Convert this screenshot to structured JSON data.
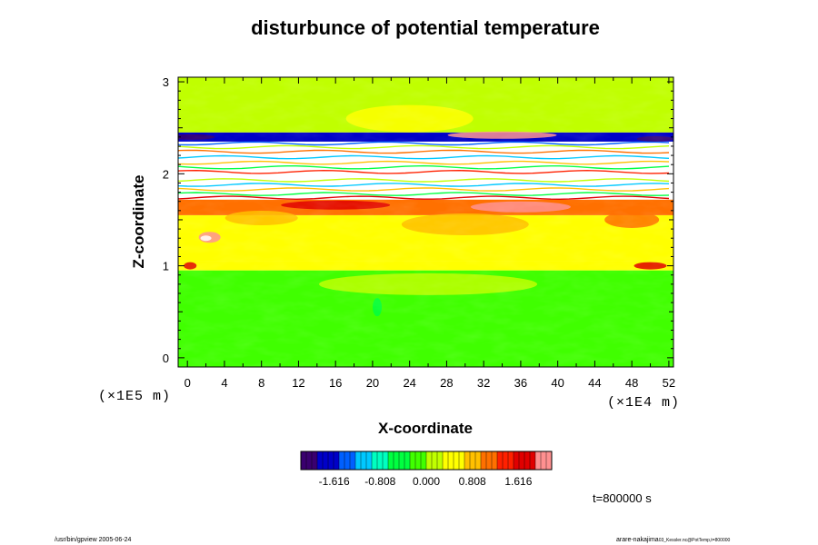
{
  "chart_data": {
    "type": "heatmap",
    "title": "disturbunce of potential temperature",
    "xlabel": "X-coordinate",
    "ylabel": "Z-coordinate",
    "x_unit": "(×1E4 m)",
    "y_unit": "(×1E5 m)",
    "xlim": [
      -1,
      52.5
    ],
    "ylim": [
      -0.1,
      3.05
    ],
    "x_ticks": [
      "0",
      "4",
      "8",
      "12",
      "16",
      "20",
      "24",
      "28",
      "32",
      "36",
      "40",
      "44",
      "48",
      "52"
    ],
    "y_ticks": [
      "0",
      "1",
      "2",
      "3"
    ],
    "colorbar": {
      "range": [
        -2.2,
        2.2
      ],
      "tick_values": [
        -1.616,
        -0.808,
        0.0,
        0.808,
        1.616
      ],
      "tick_labels": [
        "-1.616",
        "-0.808",
        "0.000",
        "0.808",
        "1.616"
      ],
      "colors": [
        "#3a006f",
        "#0000c8",
        "#0060ff",
        "#00c8ff",
        "#00ffc0",
        "#00ff40",
        "#40ff00",
        "#c0ff00",
        "#ffff00",
        "#ffc000",
        "#ff7000",
        "#ff2000",
        "#e00000",
        "#ff9090"
      ]
    },
    "field_bands": [
      {
        "z_from": -0.1,
        "z_to": 0.95,
        "value": -0.15
      },
      {
        "z_from": 0.95,
        "z_to": 1.05,
        "value": 0.6
      },
      {
        "z_from": 1.05,
        "z_to": 1.55,
        "value": 0.35
      },
      {
        "z_from": 1.55,
        "z_to": 1.72,
        "value": 1.2
      },
      {
        "z_from": 1.72,
        "z_to": 2.35,
        "value": 3.0
      },
      {
        "z_from": 2.35,
        "z_to": 2.45,
        "value": -1.6
      },
      {
        "z_from": 2.45,
        "z_to": 3.05,
        "value": 0.05
      }
    ],
    "time_label": "t=800000 s"
  },
  "footer": {
    "left": "/usr/bin/gpview 2005-06-24",
    "right": "arare-nakajima",
    "right_small": "03_Kessler.nc@PotTemp,t=800000"
  }
}
